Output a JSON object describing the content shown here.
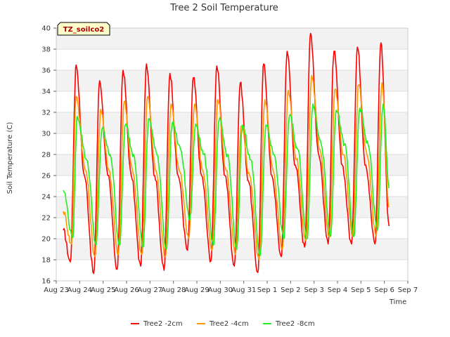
{
  "chart_data": {
    "type": "line",
    "title": "Tree 2 Soil Temperature",
    "xlabel": "Time",
    "ylabel": "Soil Temperature (C)",
    "tag": "TZ_soilco2",
    "xlim": [
      "Aug 23",
      "Sep 7"
    ],
    "ylim": [
      16,
      40
    ],
    "grid": "horizontal bands",
    "legend_position": "bottom-center",
    "x_ticks": [
      "Aug 23",
      "Aug 24",
      "Aug 25",
      "Aug 26",
      "Aug 27",
      "Aug 28",
      "Aug 29",
      "Aug 30",
      "Aug 31",
      "Sep 1",
      "Sep 2",
      "Sep 3",
      "Sep 4",
      "Sep 5",
      "Sep 6",
      "Sep 7"
    ],
    "y_ticks": [
      16,
      18,
      20,
      22,
      24,
      26,
      28,
      30,
      32,
      34,
      36,
      38,
      40
    ],
    "x_unit": "days from Aug 23 (daily min/max envelope)",
    "series": [
      {
        "name": "Tree2 -2cm",
        "color": "#ff0000",
        "points": [
          [
            0.3,
            20.8
          ],
          [
            0.6,
            17.8
          ],
          [
            0.85,
            36.5
          ],
          [
            1.2,
            26.0
          ],
          [
            1.6,
            16.7
          ],
          [
            1.85,
            35.0
          ],
          [
            2.2,
            26.0
          ],
          [
            2.6,
            17.1
          ],
          [
            2.85,
            36.0
          ],
          [
            3.2,
            26.0
          ],
          [
            3.6,
            17.4
          ],
          [
            3.85,
            36.6
          ],
          [
            4.2,
            26.0
          ],
          [
            4.6,
            17.0
          ],
          [
            4.85,
            35.7
          ],
          [
            5.2,
            26.0
          ],
          [
            5.6,
            18.9
          ],
          [
            5.85,
            35.3
          ],
          [
            6.2,
            26.0
          ],
          [
            6.6,
            17.9
          ],
          [
            6.85,
            36.4
          ],
          [
            7.2,
            26.0
          ],
          [
            7.6,
            17.4
          ],
          [
            7.85,
            34.8
          ],
          [
            8.2,
            25.5
          ],
          [
            8.6,
            16.8
          ],
          [
            8.85,
            36.6
          ],
          [
            9.2,
            26.0
          ],
          [
            9.6,
            18.3
          ],
          [
            9.85,
            37.8
          ],
          [
            10.2,
            27.0
          ],
          [
            10.6,
            19.2
          ],
          [
            10.85,
            39.5
          ],
          [
            11.2,
            28.0
          ],
          [
            11.6,
            19.5
          ],
          [
            11.85,
            37.8
          ],
          [
            12.2,
            27.0
          ],
          [
            12.6,
            19.5
          ],
          [
            12.85,
            38.2
          ],
          [
            13.2,
            27.0
          ],
          [
            13.6,
            19.5
          ],
          [
            13.85,
            38.6
          ],
          [
            14.2,
            21.2
          ]
        ]
      },
      {
        "name": "Tree2 -4cm",
        "color": "#ff9900",
        "points": [
          [
            0.3,
            22.6
          ],
          [
            0.65,
            19.5
          ],
          [
            0.85,
            33.5
          ],
          [
            1.25,
            26.5
          ],
          [
            1.65,
            18.3
          ],
          [
            1.9,
            32.3
          ],
          [
            2.25,
            26.5
          ],
          [
            2.65,
            18.5
          ],
          [
            2.9,
            33.0
          ],
          [
            3.25,
            26.5
          ],
          [
            3.65,
            18.5
          ],
          [
            3.9,
            33.5
          ],
          [
            4.25,
            26.5
          ],
          [
            4.65,
            18.3
          ],
          [
            4.9,
            32.8
          ],
          [
            5.25,
            26.5
          ],
          [
            5.65,
            20.0
          ],
          [
            5.9,
            32.8
          ],
          [
            6.25,
            26.5
          ],
          [
            6.65,
            18.9
          ],
          [
            6.9,
            33.2
          ],
          [
            7.25,
            26.5
          ],
          [
            7.65,
            18.5
          ],
          [
            7.9,
            30.7
          ],
          [
            8.25,
            26.0
          ],
          [
            8.65,
            18.0
          ],
          [
            8.9,
            33.2
          ],
          [
            9.25,
            26.5
          ],
          [
            9.65,
            19.0
          ],
          [
            9.9,
            34.1
          ],
          [
            10.25,
            27.5
          ],
          [
            10.65,
            19.8
          ],
          [
            10.9,
            35.5
          ],
          [
            11.25,
            28.5
          ],
          [
            11.65,
            20.2
          ],
          [
            11.9,
            34.2
          ],
          [
            12.25,
            28.0
          ],
          [
            12.65,
            20.2
          ],
          [
            12.9,
            34.6
          ],
          [
            13.25,
            28.0
          ],
          [
            13.65,
            20.2
          ],
          [
            13.9,
            34.8
          ],
          [
            14.2,
            23.0
          ]
        ]
      },
      {
        "name": "Tree2 -8cm",
        "color": "#22ee22",
        "points": [
          [
            0.3,
            24.6
          ],
          [
            0.7,
            20.1
          ],
          [
            0.9,
            31.6
          ],
          [
            1.3,
            27.5
          ],
          [
            1.7,
            19.4
          ],
          [
            1.95,
            30.4
          ],
          [
            2.3,
            28.0
          ],
          [
            2.7,
            19.4
          ],
          [
            2.95,
            30.8
          ],
          [
            3.3,
            28.0
          ],
          [
            3.7,
            19.2
          ],
          [
            3.95,
            31.4
          ],
          [
            4.3,
            28.0
          ],
          [
            4.7,
            19.0
          ],
          [
            4.95,
            31.0
          ],
          [
            5.3,
            28.5
          ],
          [
            5.7,
            21.8
          ],
          [
            5.95,
            30.9
          ],
          [
            6.3,
            28.0
          ],
          [
            6.7,
            19.4
          ],
          [
            6.95,
            31.3
          ],
          [
            7.3,
            28.0
          ],
          [
            7.7,
            19.0
          ],
          [
            7.95,
            30.8
          ],
          [
            8.3,
            27.5
          ],
          [
            8.7,
            18.4
          ],
          [
            8.95,
            30.8
          ],
          [
            9.3,
            28.0
          ],
          [
            9.7,
            20.0
          ],
          [
            9.95,
            31.7
          ],
          [
            10.3,
            28.5
          ],
          [
            10.7,
            20.0
          ],
          [
            10.95,
            32.8
          ],
          [
            11.3,
            29.0
          ],
          [
            11.7,
            20.2
          ],
          [
            11.95,
            32.2
          ],
          [
            12.3,
            29.0
          ],
          [
            12.7,
            20.2
          ],
          [
            12.95,
            32.4
          ],
          [
            13.3,
            29.0
          ],
          [
            13.7,
            20.8
          ],
          [
            13.95,
            32.8
          ],
          [
            14.2,
            24.8
          ]
        ]
      }
    ]
  }
}
